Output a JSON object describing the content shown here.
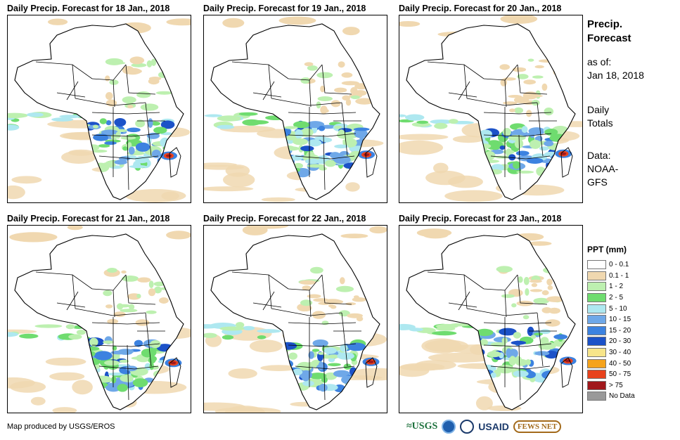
{
  "panels": [
    {
      "title": "Daily Precip. Forecast for 18 Jan., 2018"
    },
    {
      "title": "Daily Precip. Forecast for 19 Jan., 2018"
    },
    {
      "title": "Daily Precip. Forecast for 20 Jan., 2018"
    },
    {
      "title": "Daily Precip. Forecast for 21 Jan., 2018"
    },
    {
      "title": "Daily Precip. Forecast for 22 Jan., 2018"
    },
    {
      "title": "Daily Precip. Forecast for 23 Jan., 2018"
    }
  ],
  "side": {
    "title_line1": "Precip.",
    "title_line2": "Forecast",
    "asof_line1": "as of:",
    "asof_line2": "Jan 18, 2018",
    "totals_line1": "Daily",
    "totals_line2": "Totals",
    "data_line1": "Data:",
    "data_line2": "NOAA-",
    "data_line3": "GFS"
  },
  "legend": {
    "title": "PPT (mm)",
    "items": [
      {
        "label": "0 - 0.1",
        "color": "#ffffff"
      },
      {
        "label": "0.1 - 1",
        "color": "#f0d8b0"
      },
      {
        "label": "1 - 2",
        "color": "#bdf0b0"
      },
      {
        "label": "2 - 5",
        "color": "#6fdc6f"
      },
      {
        "label": "5 - 10",
        "color": "#aee8f0"
      },
      {
        "label": "10 - 15",
        "color": "#6fa8e8"
      },
      {
        "label": "15 - 20",
        "color": "#3c82e0"
      },
      {
        "label": "20 - 30",
        "color": "#1c52c8"
      },
      {
        "label": "30 - 40",
        "color": "#f7e58a"
      },
      {
        "label": "40 - 50",
        "color": "#f5a31c"
      },
      {
        "label": "50 - 75",
        "color": "#e8421c"
      },
      {
        "label": "> 75",
        "color": "#a0181c"
      },
      {
        "label": "No Data",
        "color": "#999999"
      }
    ]
  },
  "credit": "Map produced by USGS/EROS",
  "logos": {
    "usgs": "≈USGS",
    "usaid": "USAID",
    "fews": "FEWS NET"
  }
}
